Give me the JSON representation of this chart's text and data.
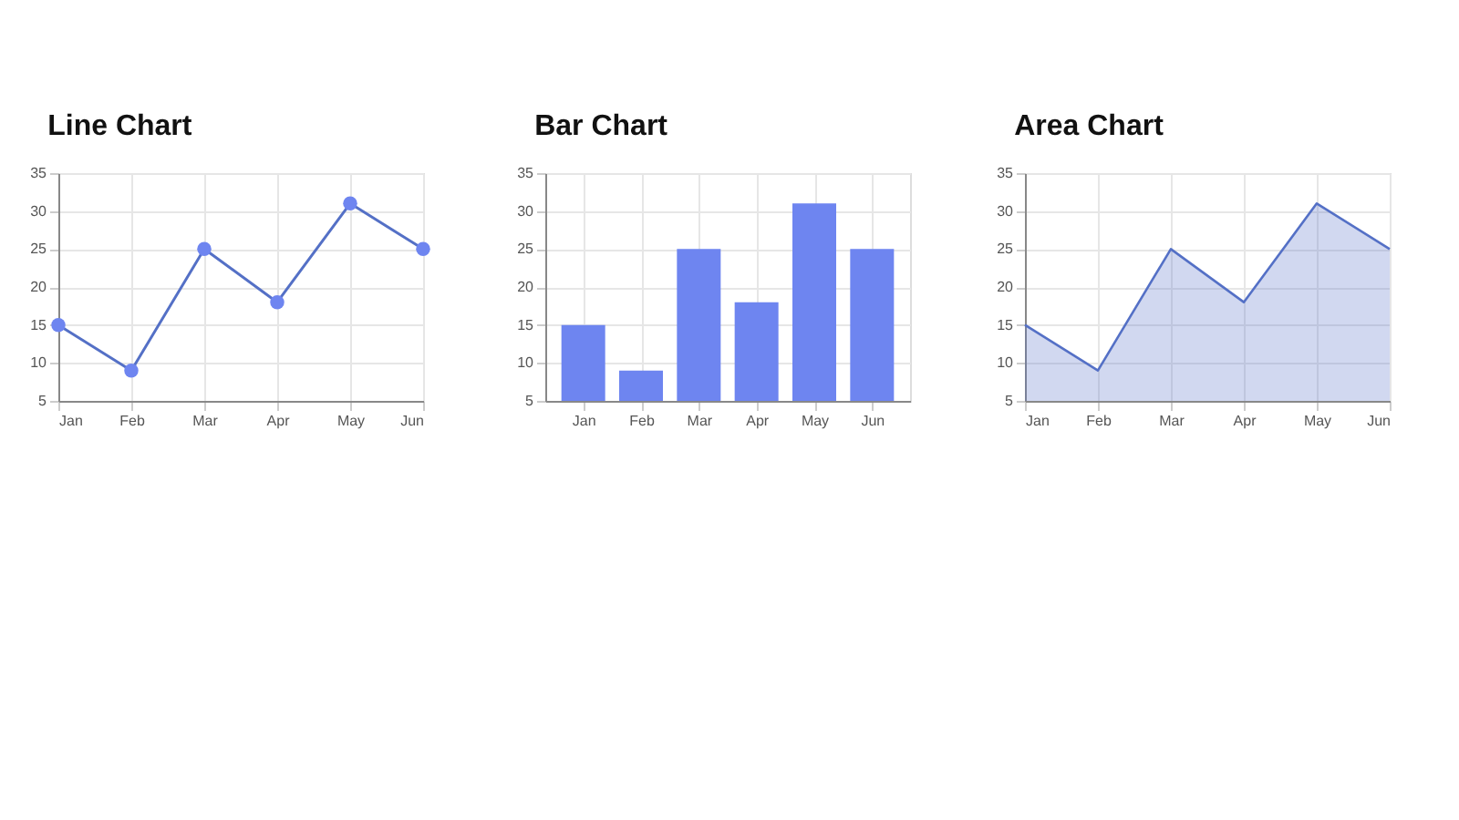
{
  "chart_data": [
    {
      "type": "line",
      "title": "Line Chart",
      "categories": [
        "Jan",
        "Feb",
        "Mar",
        "Apr",
        "May",
        "Jun"
      ],
      "series": [
        {
          "color": "#5470c6",
          "values": [
            15,
            9,
            25,
            18,
            31,
            25
          ]
        }
      ],
      "ylim": [
        5,
        35
      ],
      "yticks": [
        5,
        10,
        15,
        20,
        25,
        30,
        35
      ],
      "grid": true,
      "marker": "circle",
      "line_style": "solid"
    },
    {
      "type": "bar",
      "title": "Bar Chart",
      "categories": [
        "Jan",
        "Feb",
        "Mar",
        "Apr",
        "May",
        "Jun"
      ],
      "series": [
        {
          "color": "#6e85f0",
          "values": [
            15,
            9,
            25,
            18,
            31,
            25
          ]
        }
      ],
      "ylim": [
        5,
        35
      ],
      "yticks": [
        5,
        10,
        15,
        20,
        25,
        30,
        35
      ],
      "grid": true
    },
    {
      "type": "area",
      "title": "Area Chart",
      "categories": [
        "Jan",
        "Feb",
        "Mar",
        "Apr",
        "May",
        "Jun"
      ],
      "series": [
        {
          "color": "#5470c6",
          "values": [
            15,
            9,
            25,
            18,
            31,
            25
          ]
        }
      ],
      "ylim": [
        5,
        35
      ],
      "yticks": [
        5,
        10,
        15,
        20,
        25,
        30,
        35
      ],
      "grid": true,
      "marker": "none",
      "line_style": "solid"
    }
  ]
}
